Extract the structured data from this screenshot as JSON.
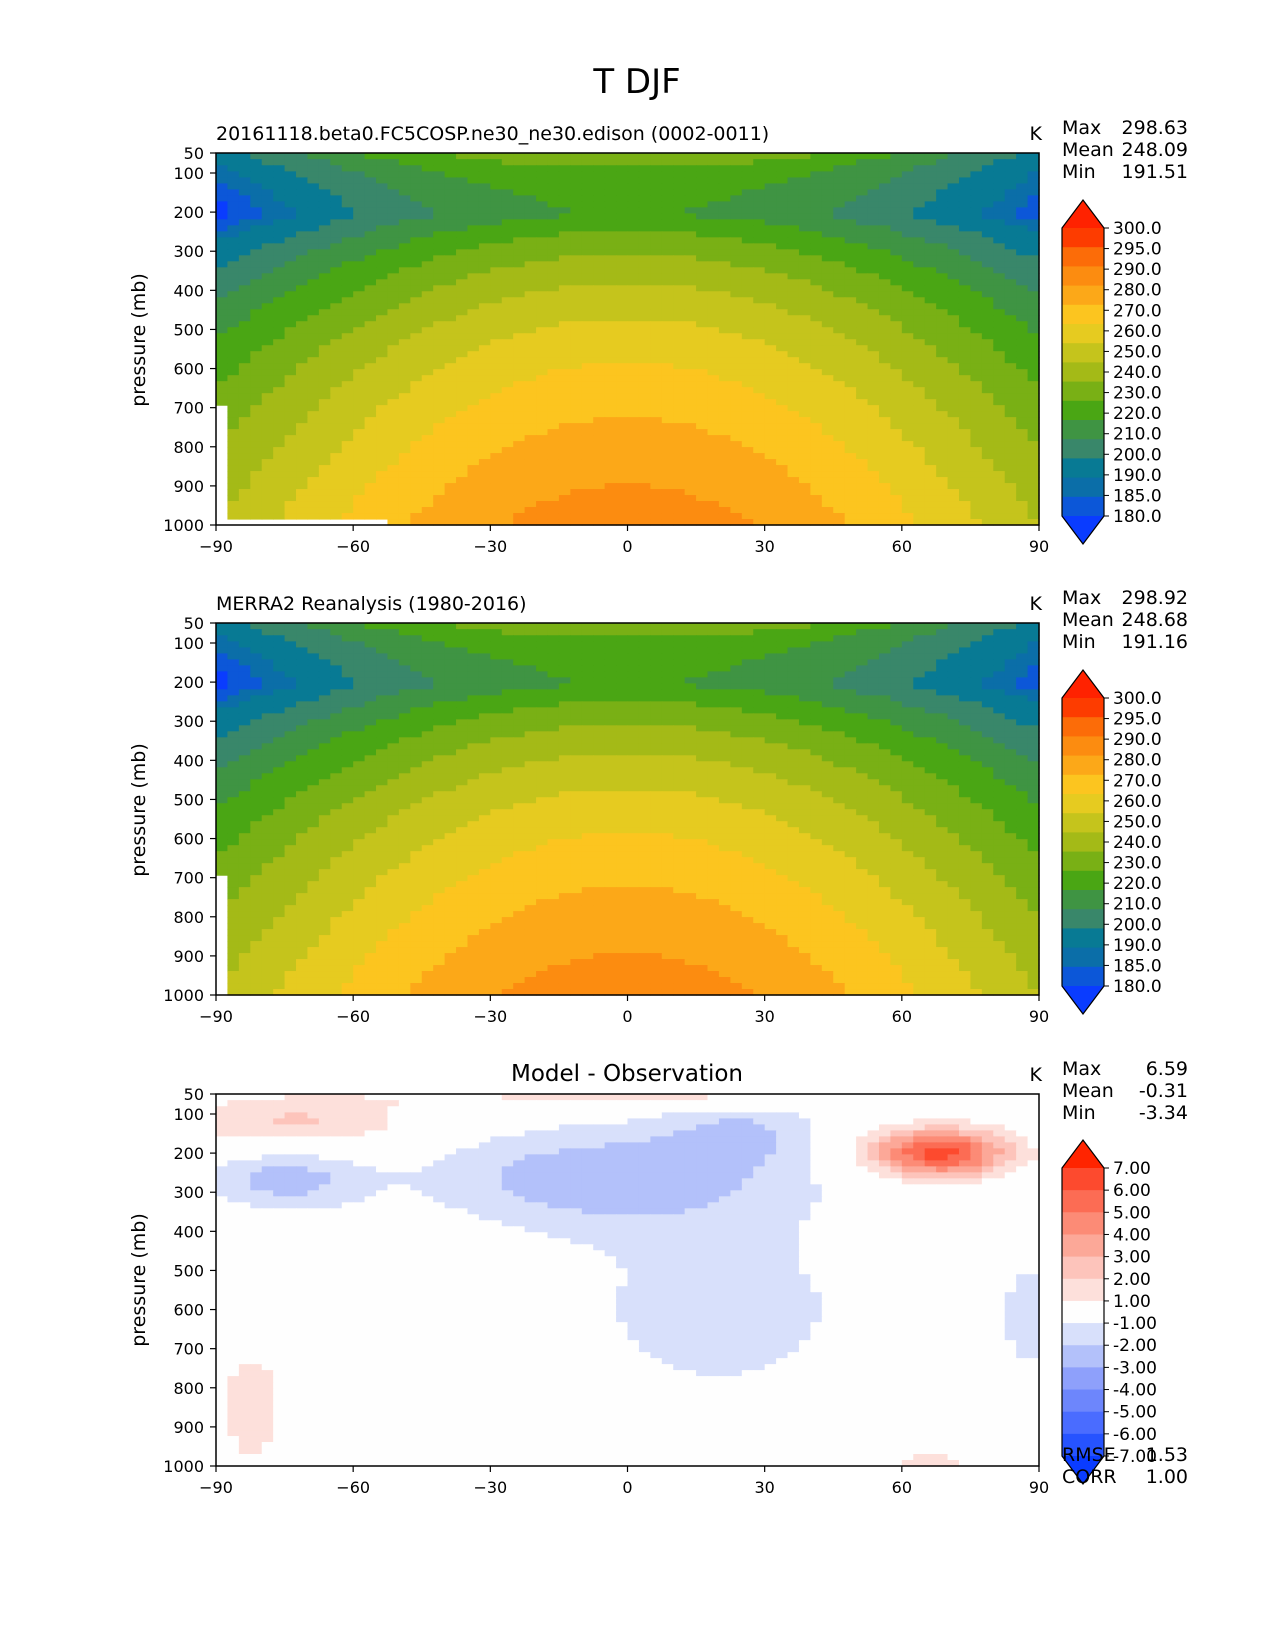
{
  "figure": {
    "title": "T DJF"
  },
  "colors": {
    "temperature_levels": [
      180,
      185,
      190,
      200,
      210,
      220,
      230,
      240,
      250,
      260,
      270,
      280,
      290,
      295,
      300
    ],
    "temperature_colors": [
      "#0a3cff",
      "#0c57d8",
      "#0b6ea8",
      "#087a94",
      "#39876a",
      "#3f9443",
      "#4aa614",
      "#79b015",
      "#a4ba17",
      "#c5c41c",
      "#e6cb20",
      "#fcc51f",
      "#fca818",
      "#fc8c10",
      "#fc6c08",
      "#fd3c00",
      "#ff2200"
    ],
    "difference_levels": [
      -7,
      -6,
      -5,
      -4,
      -3,
      -2,
      -1,
      1,
      2,
      3,
      4,
      5,
      6,
      7
    ],
    "difference_colors": [
      "#0a3cff",
      "#2653ff",
      "#4a6cff",
      "#6d86fc",
      "#8ea0fb",
      "#b3c1fa",
      "#d8e0fb",
      "#fefefe",
      "#fde0db",
      "#fdc4bb",
      "#fca898",
      "#fc8b76",
      "#fc6c54",
      "#fd4a2e",
      "#ff2400"
    ]
  },
  "chart_data": [
    {
      "type": "contour",
      "title": "20161118.beta0.FC5COSP.ne30_ne30.edison (0002-0011)",
      "units": "K",
      "xlabel": "",
      "ylabel": "pressure (mb)",
      "x_ticks": [
        -90,
        -60,
        -30,
        0,
        30,
        60,
        90
      ],
      "y_ticks": [
        50,
        100,
        200,
        300,
        400,
        500,
        600,
        700,
        800,
        900,
        1000
      ],
      "xlim": [
        -90,
        90
      ],
      "ylim": [
        1000,
        50
      ],
      "stats": {
        "Max": "298.63",
        "Mean": "248.09",
        "Min": "191.51"
      },
      "colorbar": [
        "300.0",
        "295.0",
        "290.0",
        "280.0",
        "270.0",
        "260.0",
        "250.0",
        "240.0",
        "230.0",
        "220.0",
        "210.0",
        "200.0",
        "190.0",
        "185.0",
        "180.0"
      ],
      "max": 298.63,
      "min": 191.51,
      "missing": "antarctic topography below about 700 mb near -90"
    },
    {
      "type": "contour",
      "title": "MERRA2 Reanalysis (1980-2016)",
      "units": "K",
      "xlabel": "",
      "ylabel": "pressure (mb)",
      "x_ticks": [
        -90,
        -60,
        -30,
        0,
        30,
        60,
        90
      ],
      "y_ticks": [
        50,
        100,
        200,
        300,
        400,
        500,
        600,
        700,
        800,
        900,
        1000
      ],
      "xlim": [
        -90,
        90
      ],
      "ylim": [
        1000,
        50
      ],
      "stats": {
        "Max": "298.92",
        "Mean": "248.68",
        "Min": "191.16"
      },
      "colorbar": [
        "300.0",
        "295.0",
        "290.0",
        "280.0",
        "270.0",
        "260.0",
        "250.0",
        "240.0",
        "230.0",
        "220.0",
        "210.0",
        "200.0",
        "190.0",
        "185.0",
        "180.0"
      ],
      "max": 298.92,
      "min": 191.16
    },
    {
      "type": "contour",
      "title": "Model - Observation",
      "units": "K",
      "xlabel": "",
      "ylabel": "pressure (mb)",
      "x_ticks": [
        -90,
        -60,
        -30,
        0,
        30,
        60,
        90
      ],
      "y_ticks": [
        50,
        100,
        200,
        300,
        400,
        500,
        600,
        700,
        800,
        900,
        1000
      ],
      "xlim": [
        -90,
        90
      ],
      "ylim": [
        1000,
        50
      ],
      "stats": {
        "Max": "6.59",
        "Mean": "-0.31",
        "Min": "-3.34"
      },
      "colorbar": [
        "7.00",
        "6.00",
        "5.00",
        "4.00",
        "3.00",
        "2.00",
        "1.00",
        "-1.00",
        "-2.00",
        "-3.00",
        "-4.00",
        "-5.00",
        "-6.00",
        "-7.00"
      ],
      "max": 6.59,
      "min": -3.34,
      "metrics": {
        "RMSE": "1.53",
        "CORR": "1.00"
      }
    }
  ]
}
